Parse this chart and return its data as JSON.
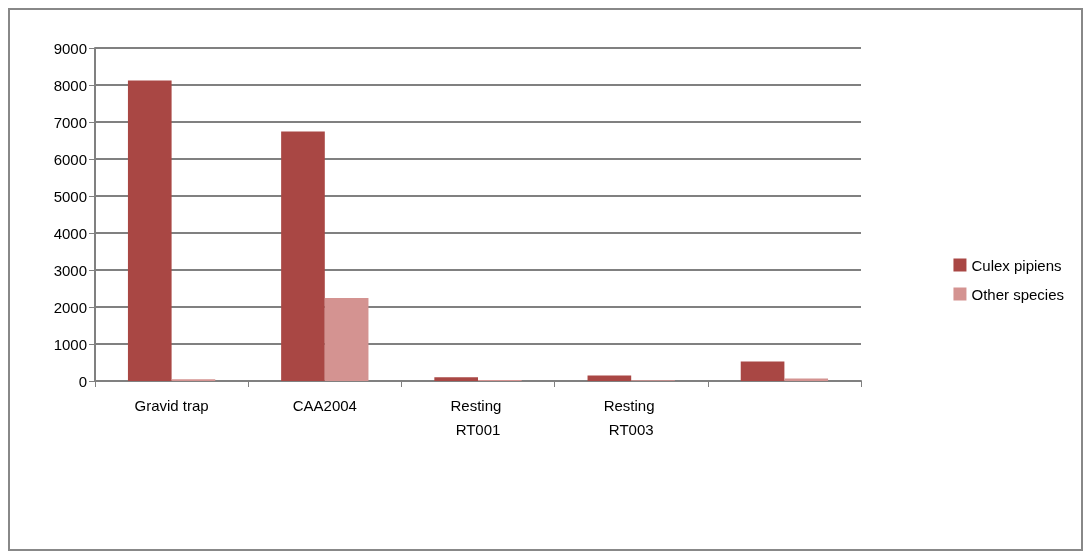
{
  "chart_data": {
    "type": "bar",
    "categories": [
      "Gravid trap",
      "CAA2004",
      "Resting RT001",
      "Resting RT003",
      null
    ],
    "series": [
      {
        "name": "Culex pipiens",
        "color": "#a94744",
        "values": [
          8120,
          6740,
          100,
          150,
          530
        ]
      },
      {
        "name": "Other species",
        "color": "#d49391",
        "values": [
          50,
          2240,
          30,
          20,
          70
        ]
      }
    ],
    "ylim": [
      0,
      9000
    ],
    "yticks": [
      0,
      1000,
      2000,
      3000,
      4000,
      5000,
      6000,
      7000,
      8000,
      9000
    ],
    "grid": "y",
    "legend": "right"
  }
}
